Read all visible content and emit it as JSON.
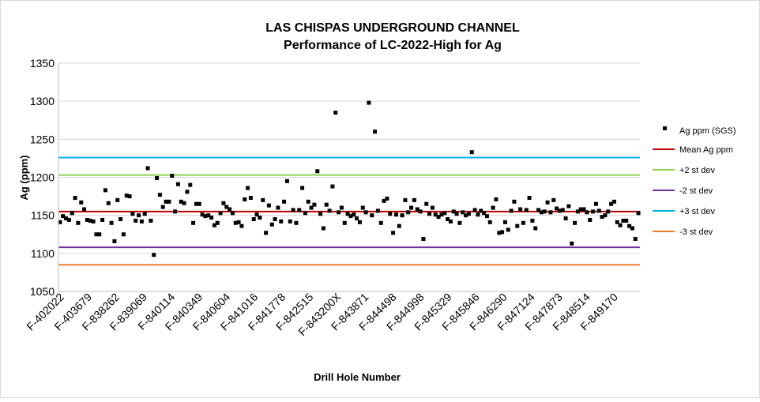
{
  "chart_data": {
    "type": "scatter",
    "title": "LAS CHISPAS UNDERGROUND CHANNEL",
    "subtitle": "Performance of LC-2022-High for Ag",
    "xlabel": "Drill Hole Number",
    "ylabel": "Ag (ppm)",
    "ylim": [
      1050,
      1350
    ],
    "yticks": [
      1050,
      1100,
      1150,
      1200,
      1250,
      1300,
      1350
    ],
    "grid": "horizontal",
    "legend_position": "right",
    "x_tick_labels": [
      "F-402022",
      "F-403679",
      "F-838262",
      "F-839069",
      "F-840114",
      "F-840349",
      "F-840604",
      "F-841016",
      "F-841778",
      "F-842515",
      "F-843200X",
      "F-843871",
      "F-844498",
      "F-844998",
      "F-845329",
      "F-845846",
      "F-846290",
      "F-847124",
      "F-847873",
      "F-848514",
      "F-849170"
    ],
    "reference_lines": [
      {
        "name": "Mean Ag ppm",
        "value": 1155,
        "color": "#c00000"
      },
      {
        "name": "+2 st dev",
        "value": 1203,
        "color": "#92d050"
      },
      {
        "name": "-2 st dev",
        "value": 1108,
        "color": "#7030a0"
      },
      {
        "name": "+3 st dev",
        "value": 1226,
        "color": "#00b0f0"
      },
      {
        "name": "-3 st dev",
        "value": 1085,
        "color": "#ed7d31"
      }
    ],
    "series": [
      {
        "name": "Ag ppm (SGS)",
        "color": "#000000",
        "values": [
          1141,
          1149,
          1146,
          1144,
          1153,
          1173,
          1140,
          1167,
          1158,
          1144,
          1143,
          1142,
          1125,
          1125,
          1144,
          1183,
          1166,
          1140,
          1116,
          1170,
          1145,
          1125,
          1176,
          1175,
          1152,
          1143,
          1150,
          1142,
          1152,
          1212,
          1143,
          1098,
          1199,
          1177,
          1161,
          1168,
          1168,
          1202,
          1155,
          1191,
          1168,
          1166,
          1181,
          1190,
          1140,
          1165,
          1165,
          1151,
          1149,
          1150,
          1147,
          1137,
          1140,
          1153,
          1166,
          1161,
          1158,
          1153,
          1140,
          1141,
          1136,
          1171,
          1186,
          1173,
          1145,
          1151,
          1147,
          1170,
          1127,
          1163,
          1138,
          1145,
          1160,
          1142,
          1168,
          1195,
          1142,
          1157,
          1140,
          1157,
          1186,
          1153,
          1168,
          1160,
          1164,
          1208,
          1152,
          1133,
          1164,
          1156,
          1188,
          1285,
          1154,
          1160,
          1140,
          1152,
          1149,
          1151,
          1146,
          1141,
          1160,
          1154,
          1298,
          1150,
          1260,
          1156,
          1140,
          1169,
          1172,
          1152,
          1127,
          1151,
          1136,
          1150,
          1170,
          1154,
          1160,
          1170,
          1158,
          1155,
          1119,
          1165,
          1152,
          1160,
          1151,
          1148,
          1151,
          1153,
          1145,
          1142,
          1155,
          1152,
          1140,
          1154,
          1150,
          1152,
          1233,
          1157,
          1151,
          1156,
          1153,
          1149,
          1141,
          1160,
          1171,
          1127,
          1128,
          1141,
          1131,
          1156,
          1168,
          1136,
          1158,
          1140,
          1157,
          1173,
          1143,
          1133,
          1157,
          1154,
          1155,
          1167,
          1154,
          1170,
          1159,
          1156,
          1157,
          1146,
          1162,
          1113,
          1140,
          1155,
          1158,
          1158,
          1154,
          1144,
          1155,
          1165,
          1156,
          1148,
          1150,
          1155,
          1165,
          1168,
          1141,
          1137,
          1143,
          1143,
          1136,
          1133,
          1119,
          1153
        ]
      }
    ]
  }
}
